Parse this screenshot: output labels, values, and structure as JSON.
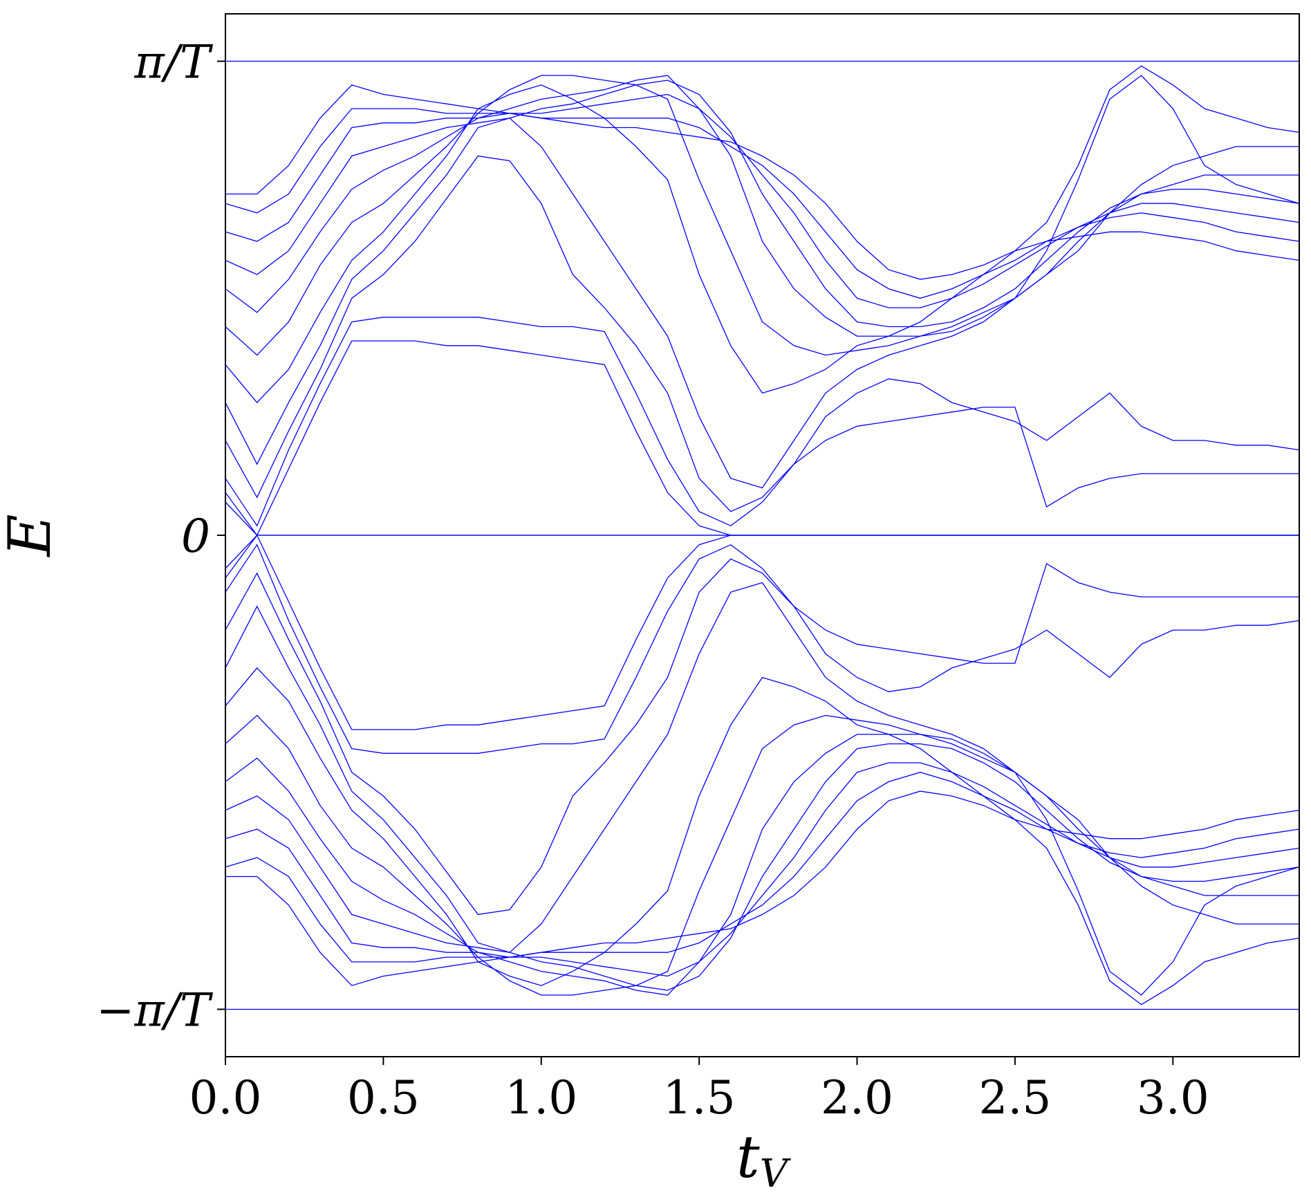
{
  "chart_data": {
    "type": "line",
    "xlabel": "t",
    "xlabel_sub": "V",
    "ylabel": "E",
    "xlim": [
      0.0,
      3.4
    ],
    "ylim": [
      -1.1,
      1.1
    ],
    "x_ticks": [
      {
        "value": 0.0,
        "label": "0.0"
      },
      {
        "value": 0.5,
        "label": "0.5"
      },
      {
        "value": 1.0,
        "label": "1.0"
      },
      {
        "value": 1.5,
        "label": "1.5"
      },
      {
        "value": 2.0,
        "label": "2.0"
      },
      {
        "value": 2.5,
        "label": "2.5"
      },
      {
        "value": 3.0,
        "label": "3.0"
      }
    ],
    "y_ticks": [
      {
        "value": -1.0,
        "label": "−π/T"
      },
      {
        "value": 0.0,
        "label": "0"
      },
      {
        "value": 1.0,
        "label": "π/T"
      }
    ],
    "y_unit_note": "E plotted in units of π/T",
    "line_color": "#0000ff",
    "grid": false,
    "legend": "none",
    "x": [
      0.0,
      0.1,
      0.2,
      0.3,
      0.4,
      0.5,
      0.6,
      0.7,
      0.8,
      0.9,
      1.0,
      1.1,
      1.2,
      1.3,
      1.4,
      1.5,
      1.6,
      1.7,
      1.8,
      1.9,
      2.0,
      2.1,
      2.2,
      2.3,
      2.4,
      2.5,
      2.6,
      2.7,
      2.8,
      2.9,
      3.0,
      3.1,
      3.2,
      3.3,
      3.4
    ],
    "series": [
      {
        "values": [
          0.07,
          0.0,
          0.0,
          0.0,
          0.0,
          0.0,
          0.0,
          0.0,
          0.0,
          0.0,
          0.0,
          0.0,
          0.0,
          0.0,
          0.0,
          0.0,
          0.0,
          0.0,
          0.0,
          0.0,
          0.0,
          0.0,
          0.0,
          0.0,
          0.0,
          0.0,
          0.0,
          0.0,
          0.0,
          0.0,
          0.0,
          0.0,
          0.0,
          0.0,
          0.0
        ]
      },
      {
        "values": [
          0.09,
          0.0,
          0.14,
          0.28,
          0.41,
          0.41,
          0.41,
          0.4,
          0.4,
          0.39,
          0.38,
          0.37,
          0.36,
          0.22,
          0.09,
          0.02,
          0.0,
          0.0,
          0.0,
          0.0,
          0.0,
          0.0,
          0.0,
          0.0,
          0.0,
          0.0,
          0.0,
          0.0,
          0.0,
          0.0,
          0.0,
          0.0,
          0.0,
          0.0,
          0.0
        ]
      },
      {
        "values": [
          0.12,
          0.02,
          0.18,
          0.32,
          0.45,
          0.46,
          0.46,
          0.46,
          0.46,
          0.45,
          0.44,
          0.44,
          0.43,
          0.3,
          0.16,
          0.05,
          0.02,
          0.07,
          0.15,
          0.2,
          0.23,
          0.24,
          0.25,
          0.26,
          0.27,
          0.27,
          0.06,
          0.1,
          0.12,
          0.13,
          0.13,
          0.13,
          0.13,
          0.13,
          0.13
        ]
      },
      {
        "values": [
          0.2,
          0.08,
          0.22,
          0.35,
          0.5,
          0.55,
          0.62,
          0.71,
          0.8,
          0.79,
          0.7,
          0.55,
          0.48,
          0.4,
          0.3,
          0.12,
          0.05,
          0.08,
          0.15,
          0.25,
          0.3,
          0.33,
          0.32,
          0.28,
          0.26,
          0.24,
          0.2,
          0.25,
          0.3,
          0.23,
          0.2,
          0.2,
          0.19,
          0.19,
          0.18
        ]
      },
      {
        "values": [
          0.28,
          0.15,
          0.28,
          0.4,
          0.54,
          0.6,
          0.68,
          0.76,
          0.86,
          0.88,
          0.82,
          0.72,
          0.62,
          0.52,
          0.42,
          0.25,
          0.12,
          0.1,
          0.2,
          0.3,
          0.35,
          0.38,
          0.4,
          0.42,
          0.45,
          0.5,
          0.6,
          0.75,
          0.92,
          0.97,
          0.9,
          0.78,
          0.74,
          0.72,
          0.7
        ]
      },
      {
        "values": [
          0.36,
          0.28,
          0.35,
          0.47,
          0.58,
          0.64,
          0.72,
          0.8,
          0.9,
          0.93,
          0.95,
          0.92,
          0.88,
          0.82,
          0.75,
          0.55,
          0.4,
          0.3,
          0.32,
          0.35,
          0.4,
          0.42,
          0.45,
          0.5,
          0.55,
          0.6,
          0.66,
          0.78,
          0.94,
          0.99,
          0.95,
          0.9,
          0.88,
          0.86,
          0.85
        ]
      },
      {
        "values": [
          0.44,
          0.38,
          0.45,
          0.57,
          0.66,
          0.7,
          0.76,
          0.82,
          0.89,
          0.94,
          0.97,
          0.97,
          0.96,
          0.95,
          0.92,
          0.75,
          0.6,
          0.45,
          0.4,
          0.38,
          0.39,
          0.4,
          0.42,
          0.44,
          0.47,
          0.5,
          0.55,
          0.6,
          0.68,
          0.74,
          0.78,
          0.8,
          0.82,
          0.82,
          0.82
        ]
      },
      {
        "values": [
          0.52,
          0.47,
          0.54,
          0.64,
          0.73,
          0.77,
          0.8,
          0.84,
          0.88,
          0.9,
          0.92,
          0.93,
          0.94,
          0.96,
          0.97,
          0.9,
          0.8,
          0.62,
          0.52,
          0.46,
          0.42,
          0.42,
          0.42,
          0.43,
          0.46,
          0.5,
          0.55,
          0.62,
          0.68,
          0.72,
          0.74,
          0.76,
          0.76,
          0.76,
          0.76
        ]
      },
      {
        "values": [
          0.58,
          0.55,
          0.6,
          0.7,
          0.8,
          0.82,
          0.84,
          0.86,
          0.87,
          0.88,
          0.9,
          0.91,
          0.93,
          0.95,
          0.96,
          0.93,
          0.85,
          0.72,
          0.62,
          0.52,
          0.45,
          0.44,
          0.44,
          0.45,
          0.48,
          0.52,
          0.58,
          0.64,
          0.69,
          0.72,
          0.73,
          0.73,
          0.72,
          0.71,
          0.7
        ]
      },
      {
        "values": [
          0.64,
          0.62,
          0.66,
          0.76,
          0.86,
          0.87,
          0.87,
          0.88,
          0.88,
          0.89,
          0.89,
          0.9,
          0.91,
          0.92,
          0.93,
          0.9,
          0.84,
          0.76,
          0.68,
          0.58,
          0.5,
          0.48,
          0.48,
          0.5,
          0.53,
          0.57,
          0.61,
          0.65,
          0.68,
          0.7,
          0.7,
          0.69,
          0.68,
          0.67,
          0.66
        ]
      },
      {
        "values": [
          0.7,
          0.68,
          0.72,
          0.82,
          0.9,
          0.9,
          0.9,
          0.89,
          0.89,
          0.89,
          0.88,
          0.88,
          0.88,
          0.88,
          0.88,
          0.86,
          0.82,
          0.78,
          0.72,
          0.64,
          0.56,
          0.52,
          0.5,
          0.52,
          0.55,
          0.58,
          0.62,
          0.65,
          0.67,
          0.68,
          0.67,
          0.66,
          0.64,
          0.63,
          0.62
        ]
      },
      {
        "values": [
          0.72,
          0.72,
          0.78,
          0.88,
          0.95,
          0.93,
          0.92,
          0.91,
          0.9,
          0.89,
          0.88,
          0.87,
          0.86,
          0.86,
          0.85,
          0.84,
          0.83,
          0.8,
          0.76,
          0.7,
          0.62,
          0.56,
          0.54,
          0.55,
          0.57,
          0.6,
          0.62,
          0.63,
          0.64,
          0.64,
          0.63,
          0.62,
          0.6,
          0.59,
          0.58
        ]
      },
      {
        "values": [
          -0.07,
          0.0,
          0.0,
          0.0,
          0.0,
          0.0,
          0.0,
          0.0,
          0.0,
          0.0,
          0.0,
          0.0,
          0.0,
          0.0,
          0.0,
          0.0,
          0.0,
          0.0,
          0.0,
          0.0,
          0.0,
          0.0,
          0.0,
          0.0,
          0.0,
          0.0,
          0.0,
          0.0,
          0.0,
          0.0,
          0.0,
          0.0,
          0.0,
          0.0,
          0.0
        ]
      },
      {
        "values": [
          -0.09,
          0.0,
          -0.14,
          -0.28,
          -0.41,
          -0.41,
          -0.41,
          -0.4,
          -0.4,
          -0.39,
          -0.38,
          -0.37,
          -0.36,
          -0.22,
          -0.09,
          -0.02,
          0.0,
          0.0,
          0.0,
          0.0,
          0.0,
          0.0,
          0.0,
          0.0,
          0.0,
          0.0,
          0.0,
          0.0,
          0.0,
          0.0,
          0.0,
          0.0,
          0.0,
          0.0,
          0.0
        ]
      },
      {
        "values": [
          -0.12,
          -0.02,
          -0.18,
          -0.32,
          -0.45,
          -0.46,
          -0.46,
          -0.46,
          -0.46,
          -0.45,
          -0.44,
          -0.44,
          -0.43,
          -0.3,
          -0.16,
          -0.05,
          -0.02,
          -0.07,
          -0.15,
          -0.2,
          -0.23,
          -0.24,
          -0.25,
          -0.26,
          -0.27,
          -0.27,
          -0.06,
          -0.1,
          -0.12,
          -0.13,
          -0.13,
          -0.13,
          -0.13,
          -0.13,
          -0.13
        ]
      },
      {
        "values": [
          -0.2,
          -0.08,
          -0.22,
          -0.35,
          -0.5,
          -0.55,
          -0.62,
          -0.71,
          -0.8,
          -0.79,
          -0.7,
          -0.55,
          -0.48,
          -0.4,
          -0.3,
          -0.12,
          -0.05,
          -0.08,
          -0.15,
          -0.25,
          -0.3,
          -0.33,
          -0.32,
          -0.28,
          -0.26,
          -0.24,
          -0.2,
          -0.25,
          -0.3,
          -0.23,
          -0.2,
          -0.2,
          -0.19,
          -0.19,
          -0.18
        ]
      },
      {
        "values": [
          -0.28,
          -0.15,
          -0.28,
          -0.4,
          -0.54,
          -0.6,
          -0.68,
          -0.76,
          -0.86,
          -0.88,
          -0.82,
          -0.72,
          -0.62,
          -0.52,
          -0.42,
          -0.25,
          -0.12,
          -0.1,
          -0.2,
          -0.3,
          -0.35,
          -0.38,
          -0.4,
          -0.42,
          -0.45,
          -0.5,
          -0.6,
          -0.75,
          -0.92,
          -0.97,
          -0.9,
          -0.78,
          -0.74,
          -0.72,
          -0.7
        ]
      },
      {
        "values": [
          -0.36,
          -0.28,
          -0.35,
          -0.47,
          -0.58,
          -0.64,
          -0.72,
          -0.8,
          -0.9,
          -0.93,
          -0.95,
          -0.92,
          -0.88,
          -0.82,
          -0.75,
          -0.55,
          -0.4,
          -0.3,
          -0.32,
          -0.35,
          -0.4,
          -0.42,
          -0.45,
          -0.5,
          -0.55,
          -0.6,
          -0.66,
          -0.78,
          -0.94,
          -0.99,
          -0.95,
          -0.9,
          -0.88,
          -0.86,
          -0.85
        ]
      },
      {
        "values": [
          -0.44,
          -0.38,
          -0.45,
          -0.57,
          -0.66,
          -0.7,
          -0.76,
          -0.82,
          -0.89,
          -0.94,
          -0.97,
          -0.97,
          -0.96,
          -0.95,
          -0.92,
          -0.75,
          -0.6,
          -0.45,
          -0.4,
          -0.38,
          -0.39,
          -0.4,
          -0.42,
          -0.44,
          -0.47,
          -0.5,
          -0.55,
          -0.6,
          -0.68,
          -0.74,
          -0.78,
          -0.8,
          -0.82,
          -0.82,
          -0.82
        ]
      },
      {
        "values": [
          -0.52,
          -0.47,
          -0.54,
          -0.64,
          -0.73,
          -0.77,
          -0.8,
          -0.84,
          -0.88,
          -0.9,
          -0.92,
          -0.93,
          -0.94,
          -0.96,
          -0.97,
          -0.9,
          -0.8,
          -0.62,
          -0.52,
          -0.46,
          -0.42,
          -0.42,
          -0.42,
          -0.43,
          -0.46,
          -0.5,
          -0.55,
          -0.62,
          -0.68,
          -0.72,
          -0.74,
          -0.76,
          -0.76,
          -0.76,
          -0.76
        ]
      },
      {
        "values": [
          -0.58,
          -0.55,
          -0.6,
          -0.7,
          -0.8,
          -0.82,
          -0.84,
          -0.86,
          -0.87,
          -0.88,
          -0.9,
          -0.91,
          -0.93,
          -0.95,
          -0.96,
          -0.93,
          -0.85,
          -0.72,
          -0.62,
          -0.52,
          -0.45,
          -0.44,
          -0.44,
          -0.45,
          -0.48,
          -0.52,
          -0.58,
          -0.64,
          -0.69,
          -0.72,
          -0.73,
          -0.73,
          -0.72,
          -0.71,
          -0.7
        ]
      },
      {
        "values": [
          -0.64,
          -0.62,
          -0.66,
          -0.76,
          -0.86,
          -0.87,
          -0.87,
          -0.88,
          -0.88,
          -0.89,
          -0.89,
          -0.9,
          -0.91,
          -0.92,
          -0.93,
          -0.9,
          -0.84,
          -0.76,
          -0.68,
          -0.58,
          -0.5,
          -0.48,
          -0.48,
          -0.5,
          -0.53,
          -0.57,
          -0.61,
          -0.65,
          -0.68,
          -0.7,
          -0.7,
          -0.69,
          -0.68,
          -0.67,
          -0.66
        ]
      },
      {
        "values": [
          -0.7,
          -0.68,
          -0.72,
          -0.82,
          -0.9,
          -0.9,
          -0.9,
          -0.89,
          -0.89,
          -0.89,
          -0.88,
          -0.88,
          -0.88,
          -0.88,
          -0.88,
          -0.86,
          -0.82,
          -0.78,
          -0.72,
          -0.64,
          -0.56,
          -0.52,
          -0.5,
          -0.52,
          -0.55,
          -0.58,
          -0.62,
          -0.65,
          -0.67,
          -0.68,
          -0.67,
          -0.66,
          -0.64,
          -0.63,
          -0.62
        ]
      },
      {
        "values": [
          -0.72,
          -0.72,
          -0.78,
          -0.88,
          -0.95,
          -0.93,
          -0.92,
          -0.91,
          -0.9,
          -0.89,
          -0.88,
          -0.87,
          -0.86,
          -0.86,
          -0.85,
          -0.84,
          -0.83,
          -0.8,
          -0.76,
          -0.7,
          -0.62,
          -0.56,
          -0.54,
          -0.55,
          -0.57,
          -0.6,
          -0.62,
          -0.63,
          -0.64,
          -0.64,
          -0.63,
          -0.62,
          -0.6,
          -0.59,
          -0.58
        ]
      },
      {
        "values": [
          1.0,
          1.0,
          1.0,
          1.0,
          1.0,
          1.0,
          1.0,
          1.0,
          1.0,
          1.0,
          1.0,
          1.0,
          1.0,
          1.0,
          1.0,
          1.0,
          1.0,
          1.0,
          1.0,
          1.0,
          1.0,
          1.0,
          1.0,
          1.0,
          1.0,
          1.0,
          1.0,
          1.0,
          1.0,
          1.0,
          1.0,
          1.0,
          1.0,
          1.0,
          1.0
        ]
      },
      {
        "values": [
          -1.0,
          -1.0,
          -1.0,
          -1.0,
          -1.0,
          -1.0,
          -1.0,
          -1.0,
          -1.0,
          -1.0,
          -1.0,
          -1.0,
          -1.0,
          -1.0,
          -1.0,
          -1.0,
          -1.0,
          -1.0,
          -1.0,
          -1.0,
          -1.0,
          -1.0,
          -1.0,
          -1.0,
          -1.0,
          -1.0,
          -1.0,
          -1.0,
          -1.0,
          -1.0,
          -1.0,
          -1.0,
          -1.0,
          -1.0,
          -1.0
        ]
      }
    ]
  }
}
